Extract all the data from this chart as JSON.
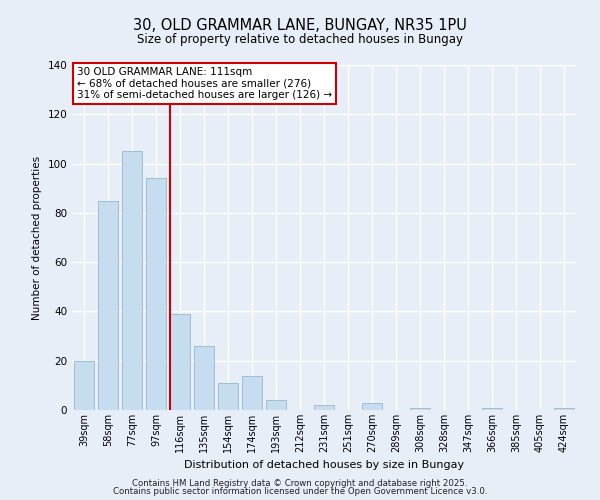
{
  "title": "30, OLD GRAMMAR LANE, BUNGAY, NR35 1PU",
  "subtitle": "Size of property relative to detached houses in Bungay",
  "bar_labels": [
    "39sqm",
    "58sqm",
    "77sqm",
    "97sqm",
    "116sqm",
    "135sqm",
    "154sqm",
    "174sqm",
    "193sqm",
    "212sqm",
    "231sqm",
    "251sqm",
    "270sqm",
    "289sqm",
    "308sqm",
    "328sqm",
    "347sqm",
    "366sqm",
    "385sqm",
    "405sqm",
    "424sqm"
  ],
  "bar_values": [
    20,
    85,
    105,
    94,
    39,
    26,
    11,
    14,
    4,
    0,
    2,
    0,
    3,
    0,
    1,
    0,
    0,
    1,
    0,
    0,
    1
  ],
  "bar_color": "#c6ddf0",
  "bar_edge_color": "#a0bdd4",
  "vline_color": "#cc0000",
  "ylabel": "Number of detached properties",
  "xlabel": "Distribution of detached houses by size in Bungay",
  "ylim": [
    0,
    140
  ],
  "yticks": [
    0,
    20,
    40,
    60,
    80,
    100,
    120,
    140
  ],
  "annotation_title": "30 OLD GRAMMAR LANE: 111sqm",
  "annotation_line1": "← 68% of detached houses are smaller (276)",
  "annotation_line2": "31% of semi-detached houses are larger (126) →",
  "annotation_box_color": "#ffffff",
  "annotation_box_edge": "#cc0000",
  "footer_line1": "Contains HM Land Registry data © Crown copyright and database right 2025.",
  "footer_line2": "Contains public sector information licensed under the Open Government Licence v3.0.",
  "background_color": "#e8eef8",
  "grid_color": "#ffffff"
}
